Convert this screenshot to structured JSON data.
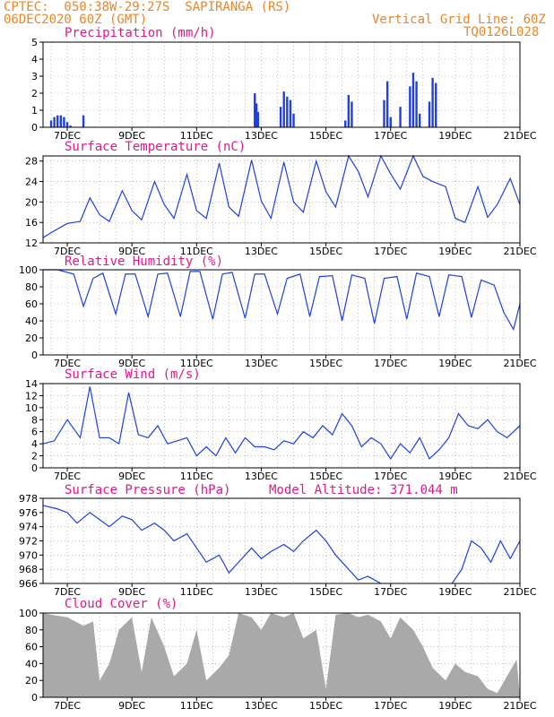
{
  "header": {
    "line1_left": "CPTEC:  050:38W-29:27S  SAPIRANGA (RS)",
    "line2_left": "06DEC2020 60Z (GMT)",
    "line2_right": "Vertical Grid Line: 60Z",
    "line3_right": "TQ0126L028"
  },
  "colors": {
    "header": "#e8862a",
    "title": "#e0188c",
    "series": "#1f3fe0",
    "cloud": "#a9a9a9",
    "grid": "#999999"
  },
  "x_axis": {
    "labels": [
      "7DEC",
      "9DEC",
      "11DEC",
      "13DEC",
      "15DEC",
      "17DEC",
      "19DEC",
      "21DEC"
    ]
  },
  "chart_data": [
    {
      "type": "bar",
      "title": "Precipitation (mm/h)",
      "ylim": [
        0,
        5
      ],
      "yticks": [
        0,
        1,
        2,
        3,
        4,
        5
      ],
      "x_range_days": [
        6.25,
        21
      ],
      "x": [
        6.5,
        6.6,
        6.7,
        6.8,
        6.9,
        7.0,
        7.1,
        7.5,
        12.8,
        12.85,
        12.9,
        13.6,
        13.7,
        13.8,
        13.9,
        14.0,
        15.6,
        15.7,
        15.8,
        16.8,
        16.9,
        17.0,
        17.3,
        17.6,
        17.7,
        17.8,
        17.9,
        18.2,
        18.3,
        18.4
      ],
      "values": [
        0.4,
        0.6,
        0.7,
        0.7,
        0.6,
        0.3,
        0.1,
        0.7,
        2.0,
        1.4,
        0.9,
        1.2,
        2.1,
        1.8,
        1.6,
        0.8,
        0.4,
        1.9,
        1.5,
        1.6,
        2.7,
        0.6,
        1.2,
        2.4,
        3.2,
        2.7,
        0.8,
        1.5,
        2.9,
        2.6
      ],
      "grid": true
    },
    {
      "type": "line",
      "title": "Surface Temperature (nC)",
      "ylim": [
        12,
        29
      ],
      "yticks": [
        12,
        16,
        20,
        24,
        28
      ],
      "x": [
        6.25,
        6.5,
        7.0,
        7.4,
        7.7,
        8.0,
        8.3,
        8.7,
        9.0,
        9.3,
        9.7,
        10.0,
        10.3,
        10.7,
        11.0,
        11.3,
        11.7,
        12.0,
        12.3,
        12.7,
        13.0,
        13.3,
        13.7,
        14.0,
        14.3,
        14.7,
        15.0,
        15.3,
        15.7,
        16.0,
        16.3,
        16.7,
        17.0,
        17.3,
        17.7,
        18.0,
        18.3,
        18.7,
        19.0,
        19.3,
        19.7,
        20.0,
        20.3,
        20.7,
        21.0
      ],
      "values": [
        13,
        14,
        15.8,
        16.2,
        20.8,
        17.5,
        16.2,
        22.2,
        18.3,
        16.5,
        24.0,
        19.5,
        16.8,
        25.4,
        18.3,
        16.8,
        27.6,
        19.0,
        17.2,
        28.2,
        20.2,
        16.8,
        27.8,
        20.0,
        18.0,
        28.0,
        22.0,
        19.0,
        29.0,
        26.0,
        21.0,
        29.0,
        25.5,
        22.5,
        29.0,
        25.0,
        24.0,
        23.0,
        16.8,
        16.0,
        23.0,
        17.0,
        19.5,
        24.6,
        19.5
      ],
      "grid": true
    },
    {
      "type": "line",
      "title": "Relative Humidity (%)",
      "ylim": [
        0,
        100
      ],
      "yticks": [
        0,
        20,
        40,
        60,
        80,
        100
      ],
      "x": [
        6.25,
        6.7,
        7.2,
        7.5,
        7.8,
        8.1,
        8.5,
        8.8,
        9.1,
        9.5,
        9.8,
        10.1,
        10.5,
        10.8,
        11.1,
        11.5,
        11.8,
        12.1,
        12.5,
        12.8,
        13.1,
        13.5,
        13.8,
        14.2,
        14.5,
        14.8,
        15.2,
        15.5,
        15.8,
        16.2,
        16.5,
        16.8,
        17.2,
        17.5,
        17.8,
        18.2,
        18.5,
        18.8,
        19.2,
        19.5,
        19.8,
        20.2,
        20.5,
        20.8,
        21.0
      ],
      "values": [
        100,
        100,
        95,
        57,
        90,
        96,
        48,
        95,
        95,
        45,
        95,
        96,
        45,
        98,
        98,
        42,
        95,
        97,
        43,
        95,
        95,
        48,
        90,
        95,
        45,
        92,
        93,
        40,
        94,
        90,
        37,
        90,
        92,
        42,
        96,
        92,
        45,
        94,
        92,
        44,
        88,
        82,
        50,
        30,
        60
      ],
      "grid": true
    },
    {
      "type": "line",
      "title": "Surface Wind (m/s)",
      "ylim": [
        0,
        14
      ],
      "yticks": [
        0,
        2,
        4,
        6,
        8,
        10,
        12,
        14
      ],
      "x": [
        6.25,
        6.6,
        7.0,
        7.4,
        7.7,
        8.0,
        8.3,
        8.6,
        8.9,
        9.2,
        9.5,
        9.8,
        10.1,
        10.4,
        10.7,
        11.0,
        11.3,
        11.6,
        11.9,
        12.2,
        12.5,
        12.8,
        13.1,
        13.4,
        13.7,
        14.0,
        14.3,
        14.6,
        14.9,
        15.2,
        15.5,
        15.8,
        16.1,
        16.4,
        16.7,
        17.0,
        17.3,
        17.6,
        17.9,
        18.2,
        18.5,
        18.8,
        19.1,
        19.4,
        19.7,
        20.0,
        20.3,
        20.6,
        21.0
      ],
      "values": [
        4,
        4.5,
        8,
        5,
        13.5,
        5,
        5,
        4,
        12.5,
        5.5,
        5,
        7,
        4,
        4.5,
        5,
        2,
        3.5,
        2,
        5,
        2.5,
        5,
        3.5,
        3.5,
        3,
        4.5,
        4,
        6,
        5,
        7,
        5.5,
        9,
        7,
        3.5,
        5,
        4,
        1.5,
        4,
        2.5,
        5,
        1.5,
        3,
        5,
        9,
        7,
        6.5,
        8,
        6,
        5,
        7
      ],
      "grid": true
    },
    {
      "type": "line",
      "title": "Surface Pressure (hPa)",
      "annotation": "Model Altitude: 371.044 m",
      "ylim": [
        966,
        978
      ],
      "yticks": [
        966,
        968,
        970,
        972,
        974,
        976,
        978
      ],
      "x": [
        6.25,
        6.7,
        7.0,
        7.3,
        7.7,
        8.0,
        8.3,
        8.7,
        9.0,
        9.3,
        9.7,
        10.0,
        10.3,
        10.7,
        11.0,
        11.3,
        11.7,
        12.0,
        12.3,
        12.7,
        13.0,
        13.3,
        13.7,
        14.0,
        14.3,
        14.7,
        15.0,
        15.3,
        15.7,
        16.0,
        16.3,
        16.7
      ],
      "values": [
        977,
        976.5,
        976,
        974.5,
        976,
        975,
        974,
        975.5,
        975,
        973.5,
        974.5,
        973.5,
        972,
        973,
        971,
        969,
        970,
        967.5,
        969,
        971,
        969.5,
        970.5,
        971.5,
        970.5,
        972,
        973.5,
        972,
        970,
        968,
        966.5,
        967,
        966
      ],
      "x2": [
        18.9,
        19.2,
        19.5,
        19.8,
        20.1,
        20.4,
        20.7,
        21.0
      ],
      "values2": [
        966,
        968,
        972,
        971,
        969,
        972,
        969.5,
        972
      ],
      "grid": true
    },
    {
      "type": "area",
      "title": "Cloud Cover (%)",
      "ylim": [
        0,
        100
      ],
      "yticks": [
        0,
        20,
        40,
        60,
        80,
        100
      ],
      "x": [
        6.25,
        6.5,
        7.0,
        7.5,
        7.8,
        8.0,
        8.3,
        8.6,
        9.0,
        9.3,
        9.6,
        10.0,
        10.3,
        10.7,
        11.0,
        11.3,
        11.7,
        12.0,
        12.3,
        12.7,
        13.0,
        13.3,
        13.7,
        14.0,
        14.3,
        14.7,
        15.0,
        15.3,
        15.7,
        16.0,
        16.3,
        16.7,
        17.0,
        17.3,
        17.7,
        18.0,
        18.3,
        18.7,
        19.0,
        19.3,
        19.7,
        20.0,
        20.3,
        20.6,
        20.9,
        21.0
      ],
      "values": [
        100,
        98,
        95,
        85,
        90,
        20,
        40,
        80,
        95,
        30,
        95,
        60,
        25,
        40,
        80,
        20,
        35,
        50,
        100,
        95,
        80,
        100,
        95,
        100,
        70,
        80,
        10,
        98,
        100,
        95,
        98,
        90,
        70,
        95,
        80,
        60,
        35,
        20,
        40,
        30,
        25,
        10,
        5,
        25,
        45,
        0
      ],
      "grid": true
    }
  ]
}
